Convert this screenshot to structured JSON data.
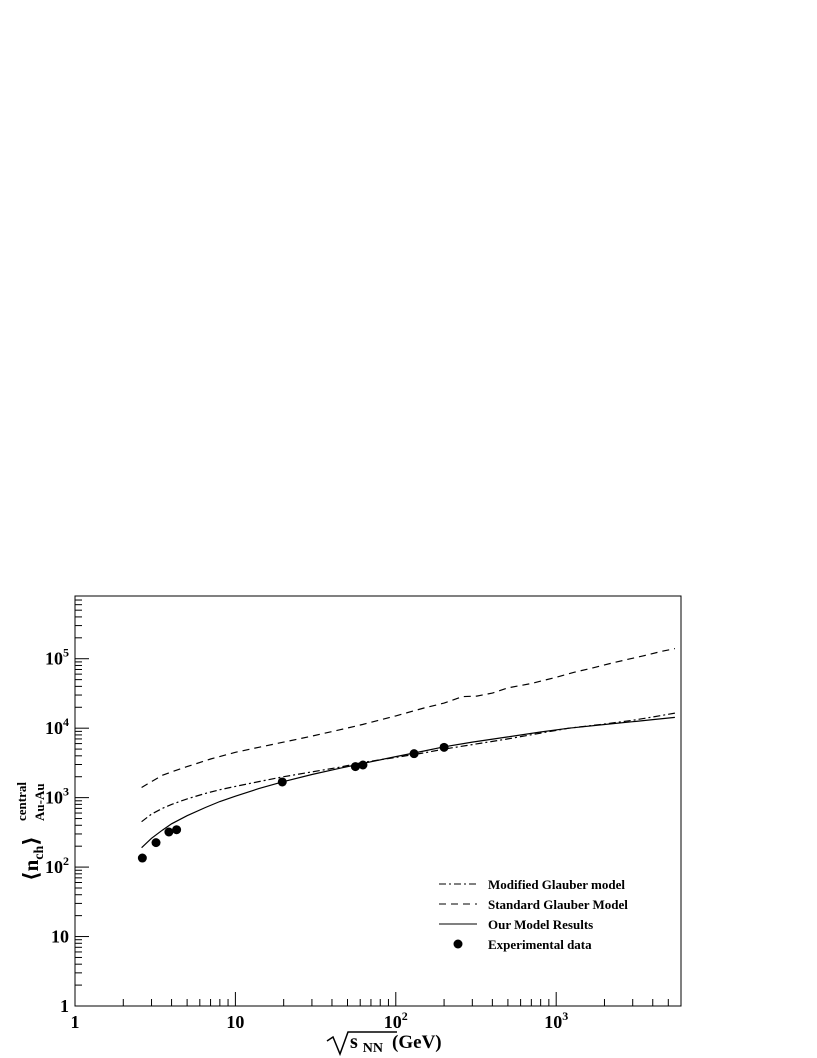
{
  "chart_data": {
    "type": "line",
    "x_scale": "log",
    "y_scale": "log",
    "xlim": [
      1,
      6000
    ],
    "ylim": [
      1,
      800000
    ],
    "xlabel": {
      "prefix": "√",
      "s": "s",
      "sub": "NN",
      "unit": "(GeV)"
    },
    "ylabel": {
      "n": "n",
      "n_sub": "ch",
      "sup": "central",
      "sub": "Au-Au"
    },
    "x_ticks": [
      {
        "value": 1,
        "label": "1"
      },
      {
        "value": 10,
        "label": "10"
      },
      {
        "value": 100,
        "label": "10",
        "exp": "2"
      },
      {
        "value": 1000,
        "label": "10",
        "exp": "3"
      }
    ],
    "y_ticks": [
      {
        "value": 1,
        "label": "1"
      },
      {
        "value": 10,
        "label": "10"
      },
      {
        "value": 100,
        "label": "10",
        "exp": "2"
      },
      {
        "value": 1000,
        "label": "10",
        "exp": "3"
      },
      {
        "value": 10000,
        "label": "10",
        "exp": "4"
      },
      {
        "value": 100000,
        "label": "10",
        "exp": "5"
      }
    ],
    "legend_position": "bottom-right",
    "series": [
      {
        "name": "Modified Glauber model",
        "style": "dashdot",
        "x": [
          2.6,
          3.0,
          3.5,
          4.0,
          5.0,
          6.5,
          8.0,
          10,
          14,
          20,
          30,
          45,
          62,
          100,
          150,
          200,
          300,
          500,
          800,
          1200,
          2000,
          3000,
          4000,
          5500
        ],
        "y": [
          450,
          580,
          700,
          800,
          960,
          1150,
          1300,
          1450,
          1700,
          2000,
          2350,
          2750,
          3200,
          3800,
          4400,
          5000,
          5800,
          7000,
          8500,
          10000,
          11500,
          13000,
          14500,
          16500
        ]
      },
      {
        "name": "Standard Glauber Model",
        "style": "dashed",
        "x": [
          2.6,
          3.0,
          3.5,
          4.0,
          5.0,
          7.0,
          10,
          14,
          20,
          30,
          45,
          62,
          100,
          150,
          200,
          260,
          320,
          400,
          500,
          700,
          1000,
          1300,
          1700,
          2200,
          2800,
          3500,
          4500,
          5500
        ],
        "y": [
          1400,
          1700,
          2100,
          2350,
          2800,
          3600,
          4500,
          5300,
          6300,
          7700,
          9500,
          11300,
          15000,
          19500,
          23000,
          28500,
          29000,
          32000,
          38000,
          44000,
          54000,
          64000,
          74000,
          86000,
          98000,
          110000,
          127000,
          140000
        ]
      },
      {
        "name": "Our Model Results",
        "style": "solid",
        "x": [
          2.6,
          3.0,
          3.5,
          4.0,
          5.0,
          6.5,
          8.0,
          10,
          14,
          20,
          30,
          45,
          62,
          100,
          150,
          200,
          300,
          500,
          800,
          1200,
          2000,
          3000,
          4000,
          5500
        ],
        "y": [
          190,
          260,
          340,
          420,
          550,
          720,
          880,
          1050,
          1350,
          1700,
          2150,
          2650,
          3100,
          3900,
          4700,
          5400,
          6300,
          7500,
          8800,
          10000,
          11300,
          12400,
          13300,
          14300
        ]
      },
      {
        "name": "Experimental data",
        "style": "markers",
        "x": [
          2.63,
          3.2,
          3.85,
          4.3,
          19.6,
          56,
          62.4,
          130,
          200
        ],
        "y": [
          135,
          225,
          320,
          345,
          1680,
          2800,
          2950,
          4300,
          5300
        ]
      }
    ]
  }
}
